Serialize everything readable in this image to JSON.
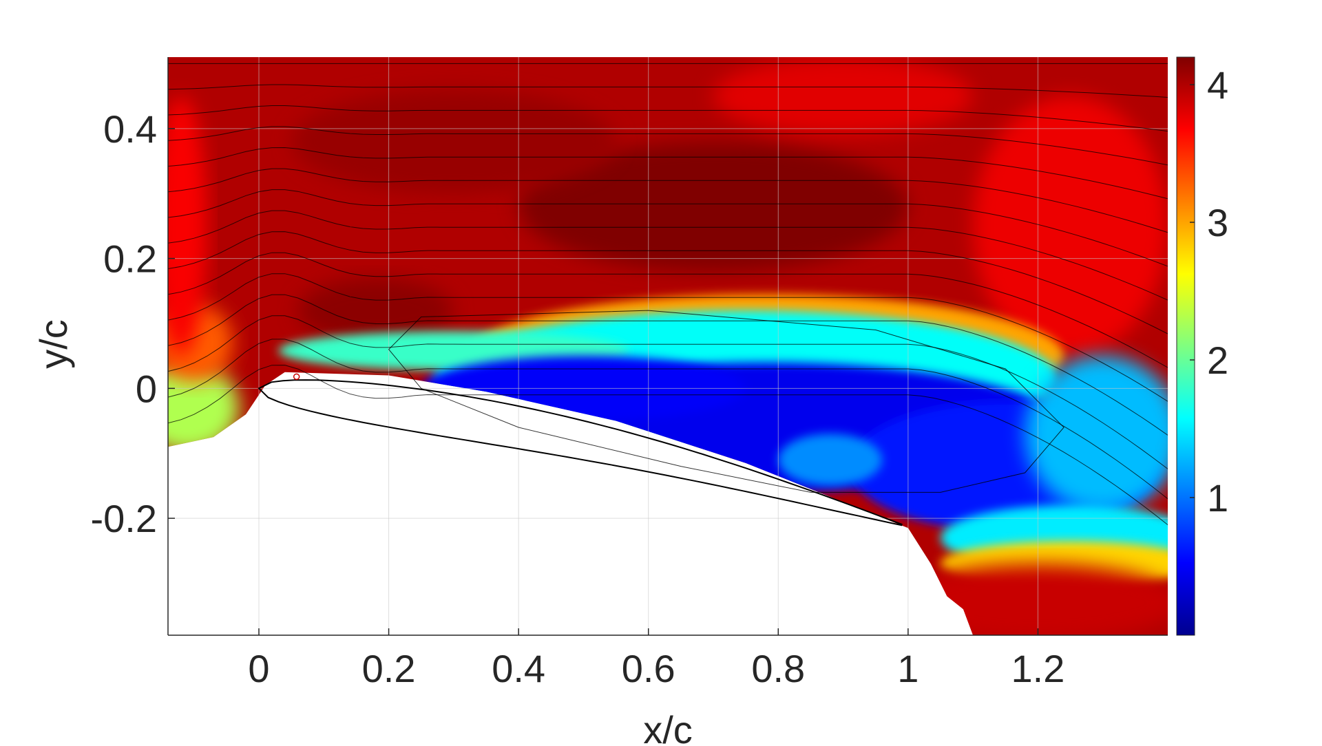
{
  "chart_data": {
    "type": "heatmap",
    "title": "",
    "xlabel": "x/c",
    "ylabel": "y/c",
    "xlim": [
      -0.14,
      1.4
    ],
    "ylim": [
      -0.38,
      0.51
    ],
    "x_ticks": [
      {
        "value": 0,
        "label": "0"
      },
      {
        "value": 0.2,
        "label": "0.2"
      },
      {
        "value": 0.4,
        "label": "0.4"
      },
      {
        "value": 0.6,
        "label": "0.6"
      },
      {
        "value": 0.8,
        "label": "0.8"
      },
      {
        "value": 1,
        "label": "1"
      },
      {
        "value": 1.2,
        "label": "1.2"
      }
    ],
    "y_ticks": [
      {
        "value": -0.2,
        "label": "-0.2"
      },
      {
        "value": 0,
        "label": "0"
      },
      {
        "value": 0.2,
        "label": "0.2"
      },
      {
        "value": 0.4,
        "label": "0.4"
      }
    ],
    "grid": true,
    "colormap": "jet",
    "colorbar": {
      "location": "right",
      "clim": [
        0,
        4.2
      ],
      "ticks": [
        {
          "value": 1,
          "label": "1"
        },
        {
          "value": 2,
          "label": "2"
        },
        {
          "value": 3,
          "label": "3"
        },
        {
          "value": 4,
          "label": "4"
        }
      ]
    },
    "field": {
      "freestream_value": 4.0,
      "low_region_value": 0.45
    },
    "airfoil_outline": {
      "leading_edge": [
        0.0,
        0.0
      ],
      "trailing_edge": [
        0.99,
        -0.21
      ]
    },
    "marker": {
      "x": 0.058,
      "y": 0.018,
      "color": "#cc0000"
    }
  }
}
